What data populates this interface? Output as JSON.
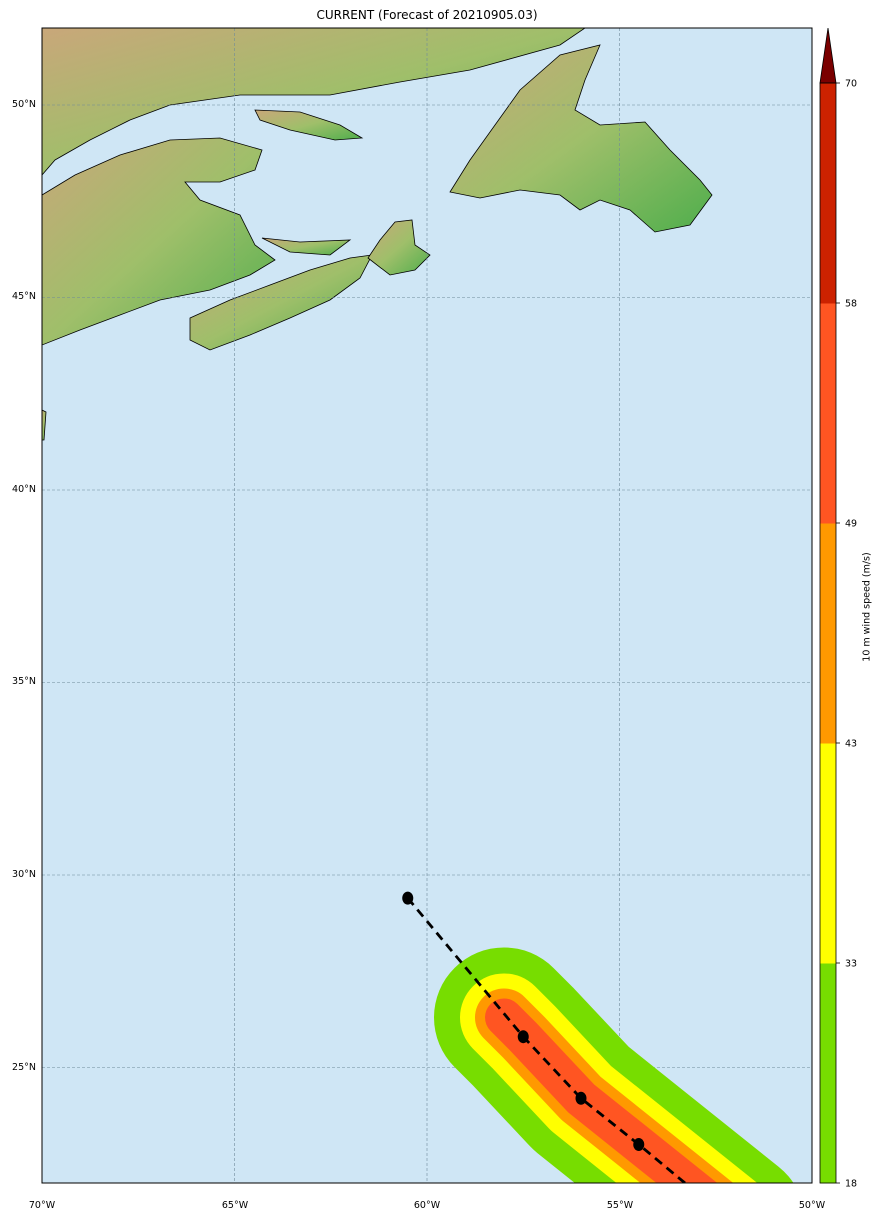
{
  "title": "CURRENT (Forecast of 20210905.03)",
  "lon_ticks": [
    "70°W",
    "65°W",
    "60°W",
    "55°W",
    "50°W"
  ],
  "lat_ticks": [
    "50°N",
    "45°N",
    "40°N",
    "35°N",
    "30°N",
    "25°N"
  ],
  "colorbar": {
    "label": "10 m wind speed (m/s)",
    "levels": [
      "18",
      "33",
      "43",
      "49",
      "58",
      "70"
    ],
    "colors": [
      "#77dd00",
      "#ffff00",
      "#ff9900",
      "#ff5522",
      "#cc2200",
      "#7a0000"
    ]
  },
  "colors": {
    "ocean": "#cfe6f5",
    "grid": "#6f8a9a",
    "track": "#000000"
  },
  "track": {
    "points": [
      {
        "lon": -60.5,
        "lat": 29.4
      },
      {
        "lon": -57.5,
        "lat": 25.8
      },
      {
        "lon": -56.0,
        "lat": 24.2
      },
      {
        "lon": -54.5,
        "lat": 23.0
      }
    ],
    "end": {
      "lon": -53.3,
      "lat": 22.0
    }
  }
}
